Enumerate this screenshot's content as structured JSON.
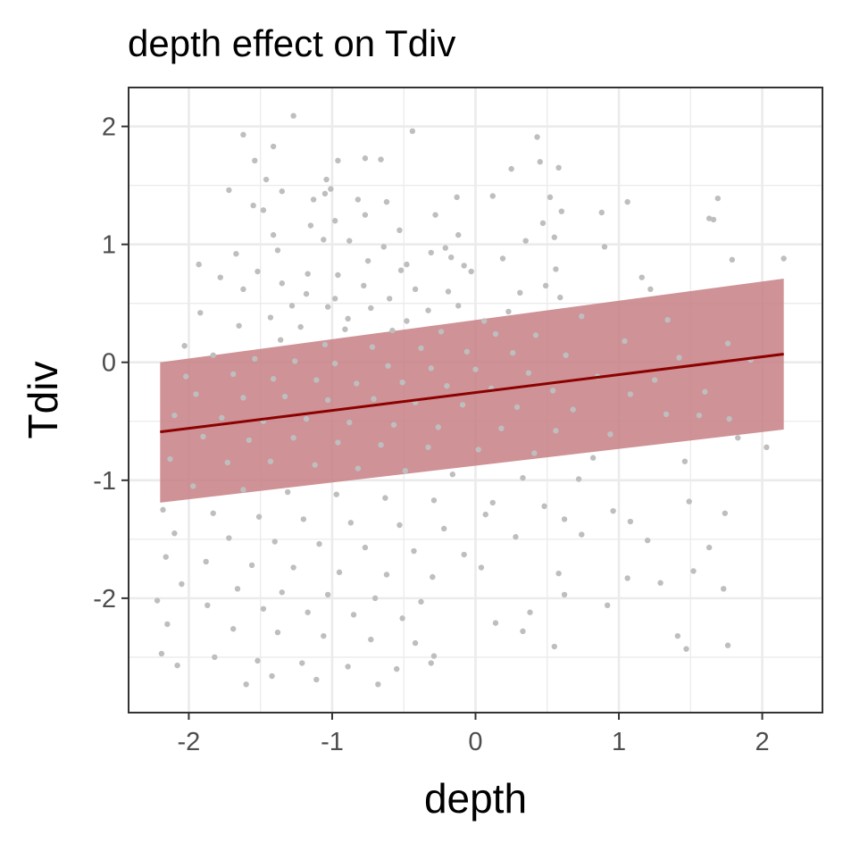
{
  "chart_data": {
    "type": "scatter",
    "title": "depth effect on Tdiv",
    "xlabel": "depth",
    "ylabel": "Tdiv",
    "xlim": [
      -2.42,
      2.42
    ],
    "ylim": [
      -2.97,
      2.33
    ],
    "x_ticks": [
      -2,
      -1,
      0,
      1,
      2
    ],
    "y_ticks": [
      -2,
      -1,
      0,
      1,
      2
    ],
    "x_tick_labels": [
      "-2",
      "-1",
      "0",
      "1",
      "2"
    ],
    "y_tick_labels": [
      "-2",
      "-1",
      "0",
      "1",
      "2"
    ],
    "grid": true,
    "colors": {
      "points": "#bebebe",
      "line": "#8b0000",
      "ribbon": "#c77f84",
      "panel_border": "#333333",
      "grid": "#ebebeb"
    },
    "series": [
      {
        "type": "line",
        "x": [
          -2.2,
          2.15
        ],
        "y": [
          -0.59,
          0.07
        ]
      },
      {
        "type": "ribbon",
        "x": [
          -2.2,
          2.15
        ],
        "ymin": [
          -1.19,
          -0.57
        ],
        "ymax": [
          0.0,
          0.71
        ]
      },
      {
        "type": "scatter",
        "points": [
          [
            -1.27,
            2.09
          ],
          [
            -1.62,
            1.93
          ],
          [
            -0.44,
            1.96
          ],
          [
            0.43,
            1.91
          ],
          [
            -1.41,
            1.83
          ],
          [
            -1.54,
            1.71
          ],
          [
            -0.96,
            1.71
          ],
          [
            -0.77,
            1.73
          ],
          [
            -0.66,
            1.72
          ],
          [
            0.45,
            1.7
          ],
          [
            0.58,
            1.65
          ],
          [
            0.25,
            1.64
          ],
          [
            -1.46,
            1.55
          ],
          [
            -1.04,
            1.55
          ],
          [
            -1.01,
            1.47
          ],
          [
            -1.05,
            1.43
          ],
          [
            -1.13,
            1.38
          ],
          [
            -1.72,
            1.46
          ],
          [
            -1.35,
            1.45
          ],
          [
            -0.13,
            1.4
          ],
          [
            0.12,
            1.41
          ],
          [
            0.52,
            1.4
          ],
          [
            1.06,
            1.36
          ],
          [
            1.69,
            1.39
          ],
          [
            1.63,
            1.22
          ],
          [
            -0.62,
            1.36
          ],
          [
            -0.82,
            1.38
          ],
          [
            -1.55,
            1.33
          ],
          [
            -1.48,
            1.29
          ],
          [
            -0.28,
            1.25
          ],
          [
            -0.77,
            1.25
          ],
          [
            0.6,
            1.28
          ],
          [
            0.88,
            1.27
          ],
          [
            1.66,
            1.21
          ],
          [
            0.47,
            1.18
          ],
          [
            -0.98,
            1.2
          ],
          [
            -1.15,
            1.16
          ],
          [
            -0.53,
            1.12
          ],
          [
            -0.12,
            1.08
          ],
          [
            0.9,
            0.98
          ],
          [
            -1.41,
            1.08
          ],
          [
            -1.06,
            1.04
          ],
          [
            -0.88,
            1.03
          ],
          [
            -0.64,
            0.98
          ],
          [
            0.35,
            1.03
          ],
          [
            0.55,
            1.06
          ],
          [
            -0.21,
            0.97
          ],
          [
            -0.31,
            0.93
          ],
          [
            -0.17,
            0.89
          ],
          [
            0.19,
            0.88
          ],
          [
            -1.38,
            0.95
          ],
          [
            -1.67,
            0.92
          ],
          [
            -1.93,
            0.83
          ],
          [
            1.79,
            0.87
          ],
          [
            2.15,
            0.88
          ],
          [
            -0.75,
            0.86
          ],
          [
            -0.48,
            0.83
          ],
          [
            -0.08,
            0.82
          ],
          [
            0.56,
            0.79
          ],
          [
            1.16,
            0.72
          ],
          [
            -1.52,
            0.77
          ],
          [
            -1.17,
            0.75
          ],
          [
            -0.96,
            0.74
          ],
          [
            -0.52,
            0.78
          ],
          [
            -0.03,
            0.77
          ],
          [
            0.49,
            0.65
          ],
          [
            1.22,
            0.62
          ],
          [
            -1.78,
            0.72
          ],
          [
            -1.35,
            0.67
          ],
          [
            -0.78,
            0.65
          ],
          [
            -0.42,
            0.62
          ],
          [
            -0.19,
            0.6
          ],
          [
            0.31,
            0.59
          ],
          [
            0.59,
            0.55
          ],
          [
            -1.62,
            0.62
          ],
          [
            -1.18,
            0.58
          ],
          [
            -0.98,
            0.54
          ],
          [
            -0.6,
            0.54
          ],
          [
            -0.12,
            0.48
          ],
          [
            0.23,
            0.43
          ],
          [
            -1.28,
            0.48
          ],
          [
            -1.03,
            0.47
          ],
          [
            -0.73,
            0.46
          ],
          [
            -0.33,
            0.44
          ],
          [
            -1.92,
            0.42
          ],
          [
            -1.43,
            0.38
          ],
          [
            -0.89,
            0.37
          ],
          [
            -0.48,
            0.35
          ],
          [
            0.06,
            0.35
          ],
          [
            0.74,
            0.39
          ],
          [
            1.34,
            0.36
          ],
          [
            -1.65,
            0.31
          ],
          [
            -1.22,
            0.3
          ],
          [
            -0.91,
            0.28
          ],
          [
            -0.58,
            0.27
          ],
          [
            -0.24,
            0.26
          ],
          [
            0.14,
            0.24
          ],
          [
            0.42,
            0.23
          ],
          [
            1.04,
            0.18
          ],
          [
            1.76,
            0.16
          ],
          [
            -2.03,
            0.14
          ],
          [
            -1.36,
            0.19
          ],
          [
            -1.05,
            0.15
          ],
          [
            -0.72,
            0.13
          ],
          [
            -0.38,
            0.12
          ],
          [
            -0.06,
            0.09
          ],
          [
            0.26,
            0.08
          ],
          [
            0.63,
            0.06
          ],
          [
            1.42,
            0.04
          ],
          [
            1.92,
            0.02
          ],
          [
            -1.83,
            0.06
          ],
          [
            -1.54,
            0.03
          ],
          [
            -1.26,
            0.01
          ],
          [
            -0.98,
            -0.01
          ],
          [
            -0.61,
            -0.03
          ],
          [
            -0.31,
            -0.05
          ],
          [
            0.0,
            -0.06
          ],
          [
            0.37,
            -0.09
          ],
          [
            0.85,
            -0.12
          ],
          [
            1.25,
            -0.15
          ],
          [
            -2.02,
            -0.12
          ],
          [
            -1.69,
            -0.1
          ],
          [
            -1.41,
            -0.14
          ],
          [
            -1.11,
            -0.15
          ],
          [
            -0.83,
            -0.18
          ],
          [
            -0.51,
            -0.17
          ],
          [
            -0.2,
            -0.2
          ],
          [
            0.11,
            -0.22
          ],
          [
            0.54,
            -0.24
          ],
          [
            1.08,
            -0.27
          ],
          [
            1.6,
            -0.25
          ],
          [
            -1.95,
            -0.27
          ],
          [
            -1.62,
            -0.3
          ],
          [
            -1.33,
            -0.29
          ],
          [
            -1.03,
            -0.32
          ],
          [
            -0.71,
            -0.31
          ],
          [
            -0.42,
            -0.34
          ],
          [
            -0.09,
            -0.36
          ],
          [
            0.29,
            -0.38
          ],
          [
            0.68,
            -0.4
          ],
          [
            1.33,
            -0.44
          ],
          [
            1.77,
            -0.48
          ],
          [
            -2.1,
            -0.45
          ],
          [
            -1.77,
            -0.47
          ],
          [
            -1.48,
            -0.5
          ],
          [
            -1.18,
            -0.48
          ],
          [
            -0.88,
            -0.51
          ],
          [
            -0.57,
            -0.53
          ],
          [
            -0.26,
            -0.55
          ],
          [
            0.18,
            -0.56
          ],
          [
            0.56,
            -0.58
          ],
          [
            0.94,
            -0.61
          ],
          [
            1.56,
            -0.45
          ],
          [
            -1.9,
            -0.63
          ],
          [
            -1.58,
            -0.66
          ],
          [
            -1.27,
            -0.64
          ],
          [
            -0.96,
            -0.68
          ],
          [
            -0.66,
            -0.7
          ],
          [
            -0.33,
            -0.72
          ],
          [
            0.02,
            -0.74
          ],
          [
            0.41,
            -0.77
          ],
          [
            0.82,
            -0.81
          ],
          [
            1.83,
            -0.64
          ],
          [
            -2.13,
            -0.82
          ],
          [
            -1.73,
            -0.85
          ],
          [
            -1.43,
            -0.84
          ],
          [
            -1.12,
            -0.87
          ],
          [
            -0.82,
            -0.9
          ],
          [
            -0.49,
            -0.92
          ],
          [
            -0.16,
            -0.95
          ],
          [
            0.33,
            -0.98
          ],
          [
            0.72,
            -0.99
          ],
          [
            1.46,
            -0.84
          ],
          [
            2.03,
            -0.72
          ],
          [
            -1.97,
            -1.05
          ],
          [
            -1.62,
            -1.08
          ],
          [
            -1.31,
            -1.1
          ],
          [
            -0.97,
            -1.12
          ],
          [
            -0.63,
            -1.15
          ],
          [
            -0.29,
            -1.17
          ],
          [
            0.12,
            -1.19
          ],
          [
            0.48,
            -1.22
          ],
          [
            0.96,
            -1.26
          ],
          [
            1.49,
            -1.18
          ],
          [
            -2.18,
            -1.25
          ],
          [
            -1.83,
            -1.28
          ],
          [
            -1.51,
            -1.31
          ],
          [
            -1.2,
            -1.33
          ],
          [
            -0.87,
            -1.36
          ],
          [
            -0.53,
            -1.38
          ],
          [
            -0.22,
            -1.41
          ],
          [
            0.07,
            -1.29
          ],
          [
            0.62,
            -1.33
          ],
          [
            1.08,
            -1.35
          ],
          [
            1.74,
            -1.28
          ],
          [
            -2.1,
            -1.45
          ],
          [
            -1.72,
            -1.49
          ],
          [
            -1.4,
            -1.52
          ],
          [
            -1.09,
            -1.54
          ],
          [
            -0.77,
            -1.57
          ],
          [
            -0.43,
            -1.6
          ],
          [
            -0.08,
            -1.63
          ],
          [
            0.28,
            -1.48
          ],
          [
            0.74,
            -1.46
          ],
          [
            1.2,
            -1.51
          ],
          [
            1.63,
            -1.57
          ],
          [
            -2.16,
            -1.65
          ],
          [
            -1.88,
            -1.69
          ],
          [
            -1.56,
            -1.72
          ],
          [
            -1.27,
            -1.74
          ],
          [
            -0.95,
            -1.78
          ],
          [
            -0.62,
            -1.8
          ],
          [
            -0.3,
            -1.82
          ],
          [
            0.04,
            -1.74
          ],
          [
            0.58,
            -1.79
          ],
          [
            1.06,
            -1.83
          ],
          [
            1.52,
            -1.77
          ],
          [
            -2.05,
            -1.88
          ],
          [
            -1.66,
            -1.92
          ],
          [
            -1.35,
            -1.95
          ],
          [
            -1.03,
            -1.97
          ],
          [
            -0.7,
            -2.0
          ],
          [
            -0.38,
            -2.03
          ],
          [
            0.62,
            -1.97
          ],
          [
            1.29,
            -1.87
          ],
          [
            1.73,
            -1.92
          ],
          [
            -2.22,
            -2.02
          ],
          [
            -1.87,
            -2.06
          ],
          [
            -1.48,
            -2.09
          ],
          [
            -1.17,
            -2.12
          ],
          [
            -0.85,
            -2.14
          ],
          [
            -0.51,
            -2.17
          ],
          [
            0.38,
            -2.12
          ],
          [
            0.92,
            -2.06
          ],
          [
            -2.15,
            -2.22
          ],
          [
            -1.69,
            -2.26
          ],
          [
            -1.38,
            -2.29
          ],
          [
            -1.06,
            -2.32
          ],
          [
            -0.73,
            -2.35
          ],
          [
            -0.42,
            -2.38
          ],
          [
            0.14,
            -2.21
          ],
          [
            0.33,
            -2.28
          ],
          [
            1.41,
            -2.32
          ],
          [
            1.47,
            -2.43
          ],
          [
            1.76,
            -2.4
          ],
          [
            -2.19,
            -2.47
          ],
          [
            -1.82,
            -2.5
          ],
          [
            -1.52,
            -2.53
          ],
          [
            -1.21,
            -2.55
          ],
          [
            -0.89,
            -2.58
          ],
          [
            -0.55,
            -2.6
          ],
          [
            -0.31,
            -2.55
          ],
          [
            0.55,
            -2.41
          ],
          [
            -2.08,
            -2.57
          ],
          [
            -1.42,
            -2.66
          ],
          [
            -1.11,
            -2.69
          ],
          [
            -0.68,
            -2.73
          ],
          [
            -1.6,
            -2.73
          ],
          [
            -0.29,
            -2.49
          ]
        ]
      }
    ]
  }
}
